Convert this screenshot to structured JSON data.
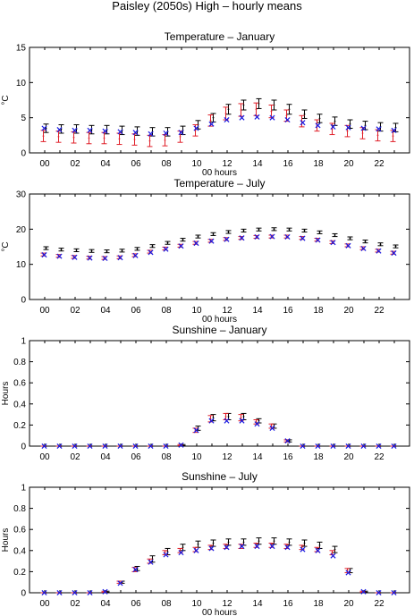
{
  "figure_title": "Paisley (2050s) High – hourly means",
  "colors": {
    "black": "#000000",
    "red": "#e0202a",
    "blue": "#1a1ae0"
  },
  "chart_data": [
    {
      "type": "scatter",
      "title": "Temperature – January",
      "xlabel": "00 hours",
      "ylabel": "°C",
      "ylim": [
        0,
        15
      ],
      "yticks": [
        0,
        5,
        10,
        15
      ],
      "xticks": [
        "00",
        "02",
        "04",
        "06",
        "08",
        "10",
        "12",
        "14",
        "16",
        "18",
        "20",
        "22"
      ],
      "xlim": [
        -1,
        24
      ],
      "hours": [
        0,
        1,
        2,
        3,
        4,
        5,
        6,
        7,
        8,
        9,
        10,
        11,
        12,
        13,
        14,
        15,
        16,
        17,
        18,
        19,
        20,
        21,
        22,
        23
      ],
      "series": [
        {
          "marker": "black-errorbar",
          "mean": [
            3.5,
            3.4,
            3.4,
            3.3,
            3.3,
            3.2,
            3.1,
            3.0,
            3.0,
            3.2,
            4.0,
            5.0,
            6.2,
            6.8,
            7.0,
            6.8,
            6.2,
            5.5,
            4.9,
            4.5,
            4.1,
            3.9,
            3.7,
            3.6
          ],
          "err": [
            0.6,
            0.6,
            0.6,
            0.6,
            0.6,
            0.6,
            0.6,
            0.6,
            0.6,
            0.6,
            0.6,
            0.6,
            0.7,
            0.7,
            0.7,
            0.7,
            0.7,
            0.6,
            0.6,
            0.6,
            0.6,
            0.6,
            0.6,
            0.6
          ]
        },
        {
          "marker": "red-errorbar",
          "mean": [
            2.4,
            2.3,
            2.2,
            2.1,
            2.1,
            2.0,
            1.9,
            1.7,
            1.8,
            2.3,
            3.2,
            4.6,
            5.6,
            6.1,
            6.2,
            5.9,
            5.3,
            4.5,
            3.9,
            3.4,
            3.1,
            2.8,
            2.5,
            2.4
          ],
          "err": [
            0.8,
            0.8,
            0.8,
            0.8,
            0.8,
            0.8,
            0.8,
            0.8,
            0.8,
            0.8,
            0.8,
            0.8,
            0.9,
            0.9,
            0.9,
            0.9,
            0.8,
            0.8,
            0.8,
            0.8,
            0.8,
            0.8,
            0.8,
            0.8
          ]
        },
        {
          "marker": "blue-x",
          "mean": [
            3.5,
            3.3,
            3.2,
            3.2,
            3.1,
            3.0,
            2.9,
            2.7,
            2.8,
            2.9,
            3.5,
            4.1,
            4.7,
            5.0,
            5.1,
            5.0,
            4.7,
            4.3,
            3.9,
            3.7,
            3.6,
            3.5,
            3.4,
            3.2
          ]
        }
      ]
    },
    {
      "type": "scatter",
      "title": "Temperature – July",
      "xlabel": "00 hours",
      "ylabel": "°C",
      "ylim": [
        0,
        30
      ],
      "yticks": [
        0,
        10,
        20,
        30
      ],
      "xticks": [
        "00",
        "02",
        "04",
        "06",
        "08",
        "10",
        "12",
        "14",
        "16",
        "18",
        "20",
        "22"
      ],
      "xlim": [
        -1,
        24
      ],
      "hours": [
        0,
        1,
        2,
        3,
        4,
        5,
        6,
        7,
        8,
        9,
        10,
        11,
        12,
        13,
        14,
        15,
        16,
        17,
        18,
        19,
        20,
        21,
        22,
        23
      ],
      "series": [
        {
          "marker": "black-errorbar",
          "mean": [
            14.6,
            14.2,
            14.0,
            13.8,
            13.7,
            13.9,
            14.4,
            15.2,
            16.1,
            17.0,
            17.9,
            18.6,
            19.2,
            19.6,
            19.9,
            20.0,
            19.9,
            19.6,
            19.1,
            18.3,
            17.4,
            16.5,
            15.7,
            15.1
          ],
          "err": [
            0.4,
            0.4,
            0.4,
            0.4,
            0.4,
            0.4,
            0.4,
            0.4,
            0.4,
            0.4,
            0.4,
            0.4,
            0.4,
            0.4,
            0.4,
            0.4,
            0.4,
            0.4,
            0.4,
            0.4,
            0.4,
            0.4,
            0.4,
            0.4
          ]
        },
        {
          "marker": "red-errorbar",
          "mean": [
            12.8,
            12.4,
            12.1,
            11.9,
            11.8,
            12.0,
            12.6,
            13.6,
            14.5,
            15.3,
            16.1,
            16.7,
            17.2,
            17.5,
            17.8,
            17.9,
            17.9,
            17.5,
            17.0,
            16.3,
            15.4,
            14.6,
            13.9,
            13.3
          ],
          "err": [
            0.4,
            0.4,
            0.4,
            0.4,
            0.4,
            0.4,
            0.4,
            0.4,
            0.4,
            0.4,
            0.4,
            0.4,
            0.4,
            0.4,
            0.4,
            0.4,
            0.4,
            0.4,
            0.4,
            0.4,
            0.4,
            0.4,
            0.4,
            0.4
          ]
        },
        {
          "marker": "blue-x",
          "mean": [
            12.7,
            12.3,
            12.0,
            11.8,
            11.7,
            11.9,
            12.5,
            13.4,
            14.3,
            15.2,
            16.0,
            16.6,
            17.1,
            17.5,
            17.8,
            17.9,
            17.8,
            17.4,
            16.9,
            16.2,
            15.3,
            14.5,
            13.8,
            13.2
          ]
        }
      ]
    },
    {
      "type": "scatter",
      "title": "Sunshine – January",
      "xlabel": "",
      "ylabel": "Hours",
      "ylim": [
        0,
        1
      ],
      "yticks": [
        0,
        0.2,
        0.4,
        0.6,
        0.8,
        1
      ],
      "xticks": [
        "00",
        "02",
        "04",
        "06",
        "08",
        "10",
        "12",
        "14",
        "16",
        "18",
        "20",
        "22"
      ],
      "xlim": [
        -1,
        24
      ],
      "hours": [
        0,
        1,
        2,
        3,
        4,
        5,
        6,
        7,
        8,
        9,
        10,
        11,
        12,
        13,
        14,
        15,
        16,
        17,
        18,
        19,
        20,
        21,
        22,
        23
      ],
      "series": [
        {
          "marker": "black-errorbar",
          "mean": [
            0,
            0,
            0,
            0,
            0,
            0,
            0,
            0,
            0,
            0.01,
            0.17,
            0.27,
            0.28,
            0.28,
            0.24,
            0.19,
            0.05,
            0,
            0,
            0,
            0,
            0,
            0,
            0
          ],
          "err": [
            0,
            0,
            0,
            0,
            0,
            0,
            0,
            0,
            0,
            0.005,
            0.02,
            0.03,
            0.03,
            0.03,
            0.02,
            0.02,
            0.01,
            0,
            0,
            0,
            0,
            0,
            0,
            0
          ]
        },
        {
          "marker": "red-errorbar",
          "mean": [
            0,
            0,
            0,
            0,
            0,
            0,
            0,
            0,
            0,
            0.01,
            0.15,
            0.26,
            0.28,
            0.27,
            0.23,
            0.19,
            0.05,
            0,
            0,
            0,
            0,
            0,
            0,
            0
          ],
          "err": [
            0,
            0,
            0,
            0,
            0,
            0,
            0,
            0,
            0,
            0.005,
            0.02,
            0.03,
            0.03,
            0.03,
            0.02,
            0.02,
            0.01,
            0,
            0,
            0,
            0,
            0,
            0,
            0
          ]
        },
        {
          "marker": "blue-x",
          "mean": [
            0,
            0,
            0,
            0,
            0,
            0,
            0,
            0,
            0,
            0.01,
            0.15,
            0.24,
            0.24,
            0.24,
            0.21,
            0.17,
            0.05,
            0,
            0,
            0,
            0,
            0,
            0,
            0
          ]
        }
      ]
    },
    {
      "type": "scatter",
      "title": "Sunshine – July",
      "xlabel": "00 hours",
      "ylabel": "Hours",
      "ylim": [
        0,
        1
      ],
      "yticks": [
        0,
        0.2,
        0.4,
        0.6,
        0.8,
        1
      ],
      "xticks": [
        "00",
        "02",
        "04",
        "06",
        "08",
        "10",
        "12",
        "14",
        "16",
        "18",
        "20",
        "22"
      ],
      "xlim": [
        -1,
        24
      ],
      "hours": [
        0,
        1,
        2,
        3,
        4,
        5,
        6,
        7,
        8,
        9,
        10,
        11,
        12,
        13,
        14,
        15,
        16,
        17,
        18,
        19,
        20,
        21,
        22,
        23
      ],
      "series": [
        {
          "marker": "black-errorbar",
          "mean": [
            0,
            0,
            0,
            0,
            0.01,
            0.1,
            0.23,
            0.32,
            0.39,
            0.43,
            0.46,
            0.47,
            0.48,
            0.48,
            0.49,
            0.49,
            0.48,
            0.47,
            0.45,
            0.41,
            0.21,
            0.01,
            0,
            0
          ],
          "err": [
            0,
            0,
            0,
            0,
            0.005,
            0.01,
            0.02,
            0.03,
            0.03,
            0.03,
            0.03,
            0.03,
            0.03,
            0.03,
            0.03,
            0.03,
            0.03,
            0.03,
            0.03,
            0.03,
            0.02,
            0.005,
            0,
            0
          ]
        },
        {
          "marker": "red-errorbar",
          "mean": [
            0,
            0,
            0,
            0,
            0.01,
            0.1,
            0.22,
            0.3,
            0.38,
            0.4,
            0.41,
            0.43,
            0.44,
            0.44,
            0.45,
            0.45,
            0.44,
            0.43,
            0.41,
            0.38,
            0.21,
            0.01,
            0,
            0
          ],
          "err": [
            0,
            0,
            0,
            0,
            0.005,
            0.01,
            0.02,
            0.02,
            0.02,
            0.02,
            0.02,
            0.02,
            0.02,
            0.02,
            0.02,
            0.02,
            0.02,
            0.02,
            0.02,
            0.02,
            0.02,
            0.005,
            0,
            0
          ]
        },
        {
          "marker": "blue-x",
          "mean": [
            0,
            0,
            0,
            0,
            0.01,
            0.09,
            0.22,
            0.29,
            0.36,
            0.38,
            0.4,
            0.42,
            0.43,
            0.44,
            0.44,
            0.44,
            0.43,
            0.41,
            0.4,
            0.35,
            0.19,
            0.01,
            0,
            0
          ]
        }
      ]
    }
  ]
}
